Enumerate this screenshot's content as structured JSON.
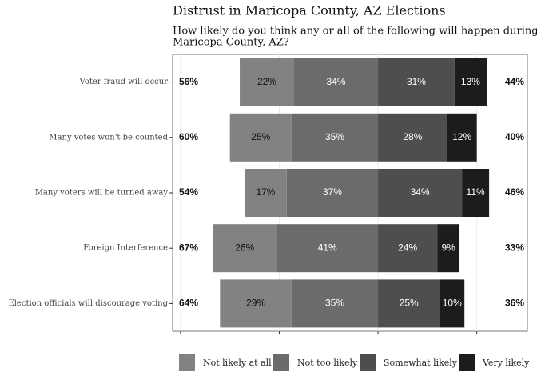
{
  "chart_data": {
    "type": "diverging_bar",
    "title": "Distrust in Maricopa County, AZ Elections",
    "subtitle": [
      "How likely do you think any or all of the following will happen during",
      "Maricopa County, AZ?"
    ],
    "categories": [
      "Voter fraud will occur",
      "Many votes won't be counted",
      "Many voters will be turned away",
      "Foreign Interference",
      "Election officials will discourage voting"
    ],
    "negative_series": 2,
    "series": [
      {
        "name": "Not likely at all",
        "color": "#828282",
        "text_color": "#111111",
        "values": [
          22,
          25,
          17,
          26,
          29
        ],
        "value_labels": [
          "22%",
          "25%",
          "17%",
          "26%",
          "29%"
        ]
      },
      {
        "name": "Not too likely",
        "color": "#6b6b6b",
        "text_color": "#ffffff",
        "values": [
          34,
          35,
          37,
          41,
          35
        ],
        "value_labels": [
          "34%",
          "35%",
          "37%",
          "41%",
          "35%"
        ]
      },
      {
        "name": "Somewhat likely",
        "color": "#4e4e4e",
        "text_color": "#ffffff",
        "values": [
          31,
          28,
          34,
          24,
          25
        ],
        "value_labels": [
          "31%",
          "28%",
          "34%",
          "24%",
          "25%"
        ]
      },
      {
        "name": "Very likely",
        "color": "#1c1c1c",
        "text_color": "#ffffff",
        "values": [
          13,
          12,
          11,
          9,
          10
        ],
        "value_labels": [
          "13%",
          "12%",
          "11%",
          "9%",
          "10%"
        ]
      }
    ],
    "left_totals": {
      "values": [
        56,
        60,
        54,
        67,
        64
      ],
      "value_labels": [
        "56%",
        "60%",
        "54%",
        "67%",
        "64%"
      ]
    },
    "right_totals": {
      "values": [
        44,
        40,
        46,
        33,
        36
      ],
      "value_labels": [
        "44%",
        "40%",
        "46%",
        "33%",
        "36%"
      ]
    },
    "xlim": [
      -83.2,
      60.5
    ],
    "xticks": [
      -80,
      -40,
      0,
      40
    ],
    "grid": true
  }
}
